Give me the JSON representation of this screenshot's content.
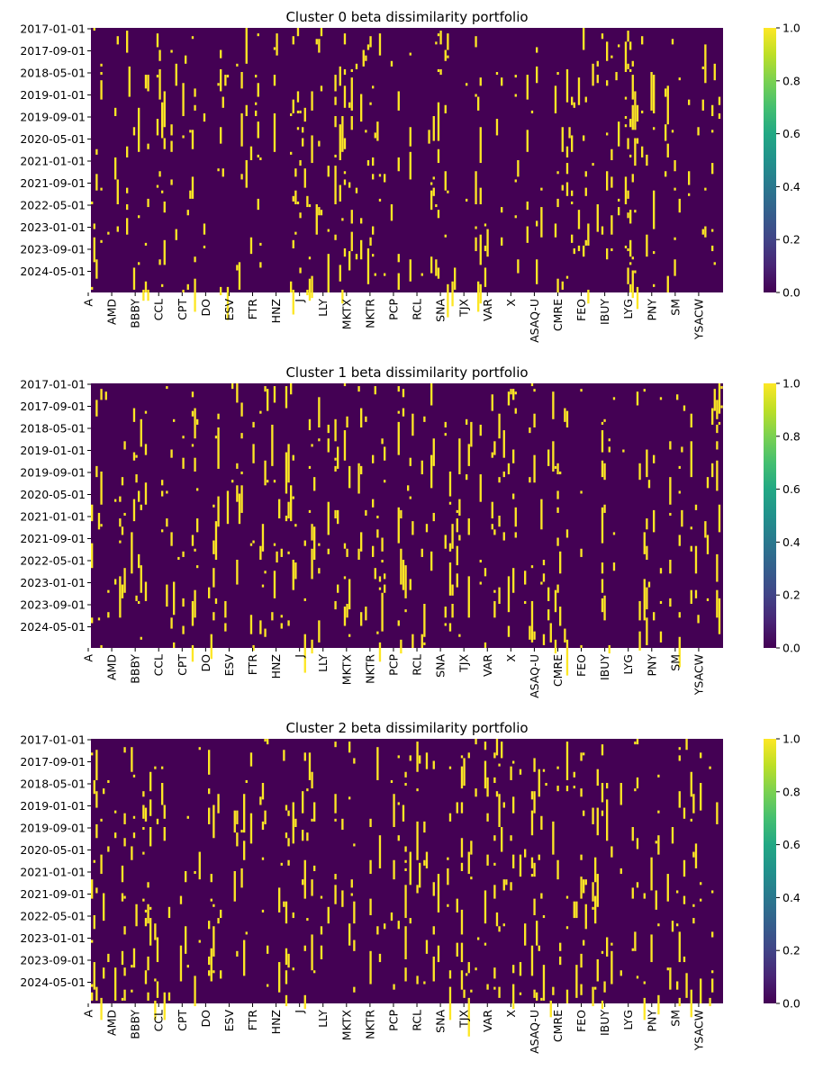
{
  "chart_data": [
    {
      "type": "heatmap",
      "title": "Cluster 0 beta dissimilarity portfolio",
      "xlabel": "",
      "ylabel": "",
      "x_tick_labels": [
        "A",
        "AMD",
        "BBBY",
        "CCL",
        "CPT",
        "DO",
        "ESV",
        "FTR",
        "HNZ",
        "J",
        "LLY",
        "MKTX",
        "NKTR",
        "PCP",
        "RCL",
        "SNA",
        "TJX",
        "VAR",
        "X",
        "ASAQ-U",
        "CMRE",
        "FEO",
        "IBUY",
        "LYG",
        "PNY",
        "SM",
        "YSACW"
      ],
      "y_tick_labels": [
        "2017-01-01",
        "2017-09-01",
        "2018-05-01",
        "2019-01-01",
        "2019-09-01",
        "2020-05-01",
        "2021-01-01",
        "2021-09-01",
        "2022-05-01",
        "2023-01-01",
        "2023-09-01",
        "2024-05-01"
      ],
      "value_range": [
        0,
        1
      ],
      "colorbar_ticks": [
        "0.0",
        "0.2",
        "0.4",
        "0.6",
        "0.8",
        "1.0"
      ],
      "colormap": "viridis",
      "background_value": 0,
      "active_value": 1
    },
    {
      "type": "heatmap",
      "title": "Cluster 1 beta dissimilarity portfolio",
      "xlabel": "",
      "ylabel": "",
      "x_tick_labels": [
        "A",
        "AMD",
        "BBBY",
        "CCL",
        "CPT",
        "DO",
        "ESV",
        "FTR",
        "HNZ",
        "J",
        "LLY",
        "MKTX",
        "NKTR",
        "PCP",
        "RCL",
        "SNA",
        "TJX",
        "VAR",
        "X",
        "ASAQ-U",
        "CMRE",
        "FEO",
        "IBUY",
        "LYG",
        "PNY",
        "SM",
        "YSACW"
      ],
      "y_tick_labels": [
        "2017-01-01",
        "2017-09-01",
        "2018-05-01",
        "2019-01-01",
        "2019-09-01",
        "2020-05-01",
        "2021-01-01",
        "2021-09-01",
        "2022-05-01",
        "2023-01-01",
        "2023-09-01",
        "2024-05-01"
      ],
      "value_range": [
        0,
        1
      ],
      "colorbar_ticks": [
        "0.0",
        "0.2",
        "0.4",
        "0.6",
        "0.8",
        "1.0"
      ],
      "colormap": "viridis",
      "background_value": 0,
      "active_value": 1
    },
    {
      "type": "heatmap",
      "title": "Cluster 2 beta dissimilarity portfolio",
      "xlabel": "",
      "ylabel": "",
      "x_tick_labels": [
        "A",
        "AMD",
        "BBBY",
        "CCL",
        "CPT",
        "DO",
        "ESV",
        "FTR",
        "HNZ",
        "J",
        "LLY",
        "MKTX",
        "NKTR",
        "PCP",
        "RCL",
        "SNA",
        "TJX",
        "VAR",
        "X",
        "ASAQ-U",
        "CMRE",
        "FEO",
        "IBUY",
        "LYG",
        "PNY",
        "SM",
        "YSACW"
      ],
      "y_tick_labels": [
        "2017-01-01",
        "2017-09-01",
        "2018-05-01",
        "2019-01-01",
        "2019-09-01",
        "2020-05-01",
        "2021-01-01",
        "2021-09-01",
        "2022-05-01",
        "2023-01-01",
        "2023-09-01",
        "2024-05-01"
      ],
      "value_range": [
        0,
        1
      ],
      "colorbar_ticks": [
        "0.0",
        "0.2",
        "0.4",
        "0.6",
        "0.8",
        "1.0"
      ],
      "colormap": "viridis",
      "background_value": 0,
      "active_value": 1
    }
  ]
}
